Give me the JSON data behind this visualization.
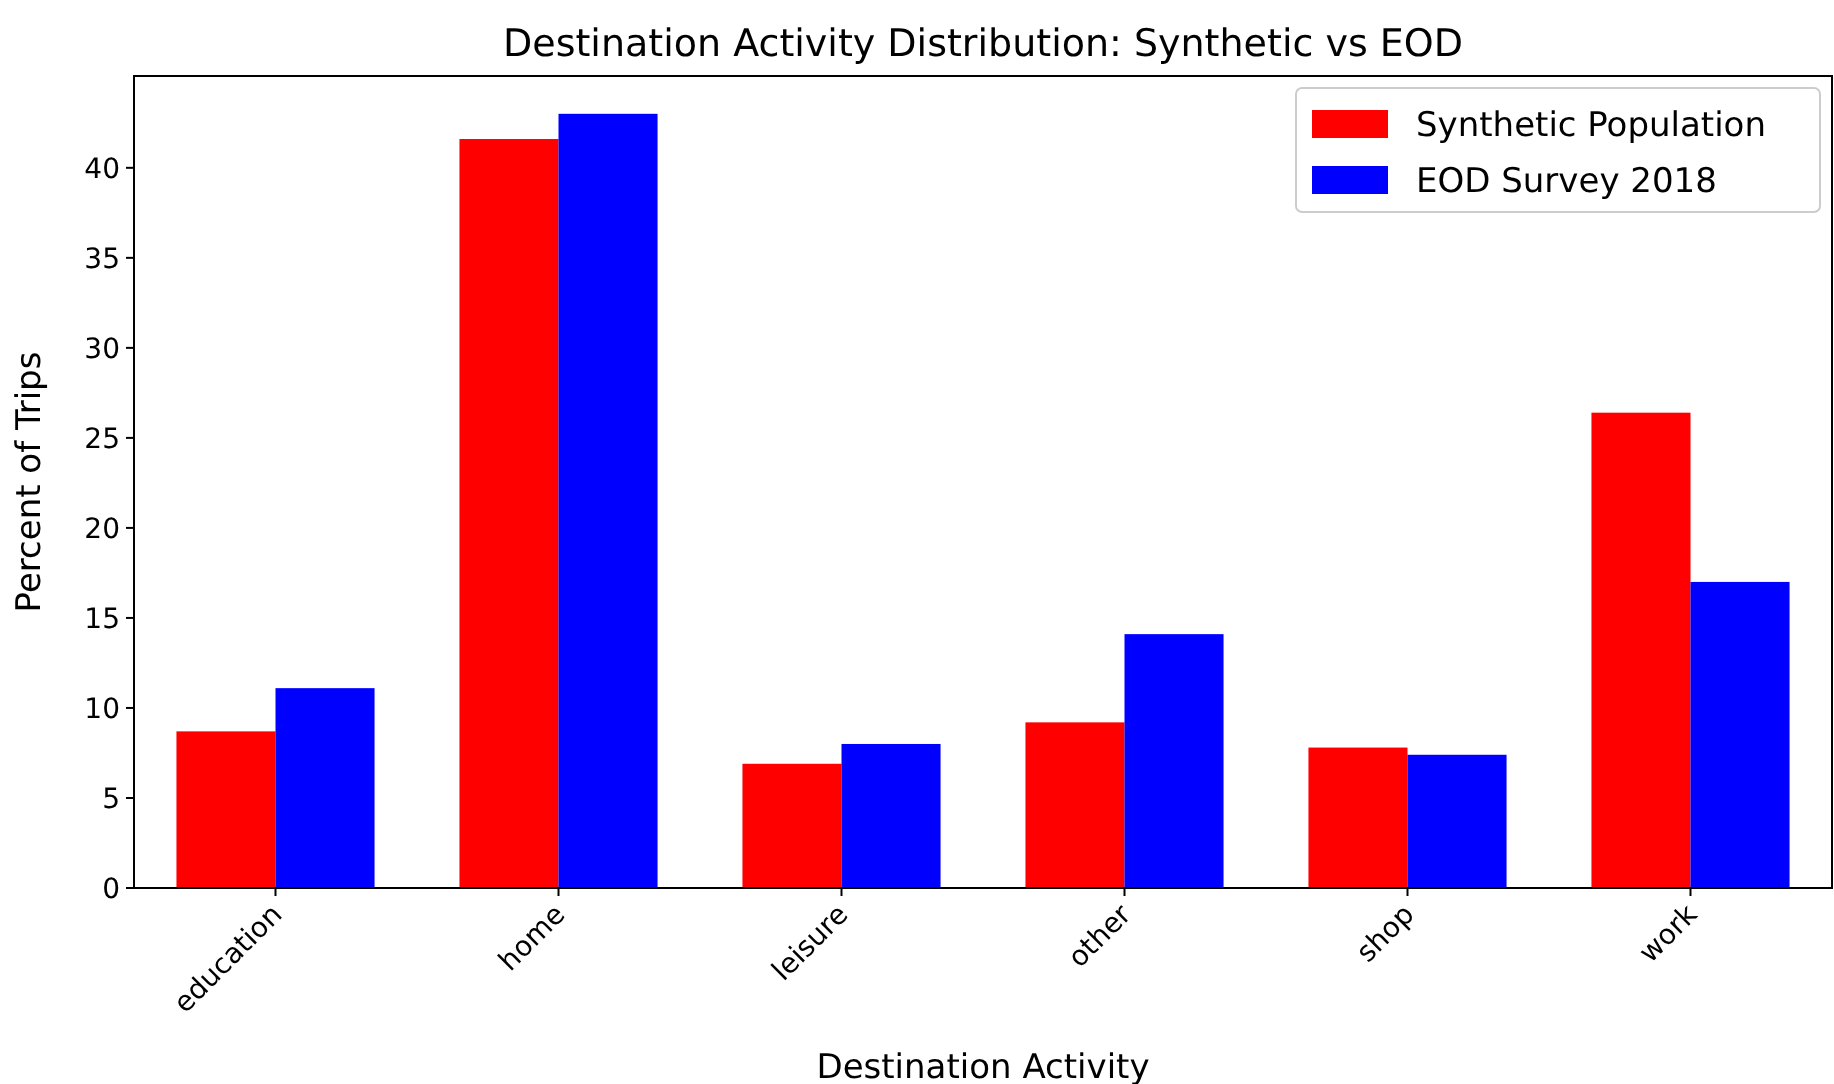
{
  "chart_data": {
    "type": "bar",
    "title": "Destination Activity Distribution: Synthetic vs EOD",
    "xlabel": "Destination Activity",
    "ylabel": "Percent of Trips",
    "categories": [
      "education",
      "home",
      "leisure",
      "other",
      "shop",
      "work"
    ],
    "series": [
      {
        "name": "Synthetic Population",
        "color": "#ff0000",
        "values": [
          8.7,
          41.6,
          6.9,
          9.2,
          7.8,
          26.4
        ]
      },
      {
        "name": "EOD Survey 2018",
        "color": "#0000ff",
        "values": [
          11.1,
          43.0,
          8.0,
          14.1,
          7.4,
          17.0
        ]
      }
    ],
    "ylim": [
      0,
      45.1
    ],
    "yticks": [
      0,
      5,
      10,
      15,
      20,
      25,
      30,
      35,
      40
    ],
    "grid": false,
    "legend": "top right"
  }
}
